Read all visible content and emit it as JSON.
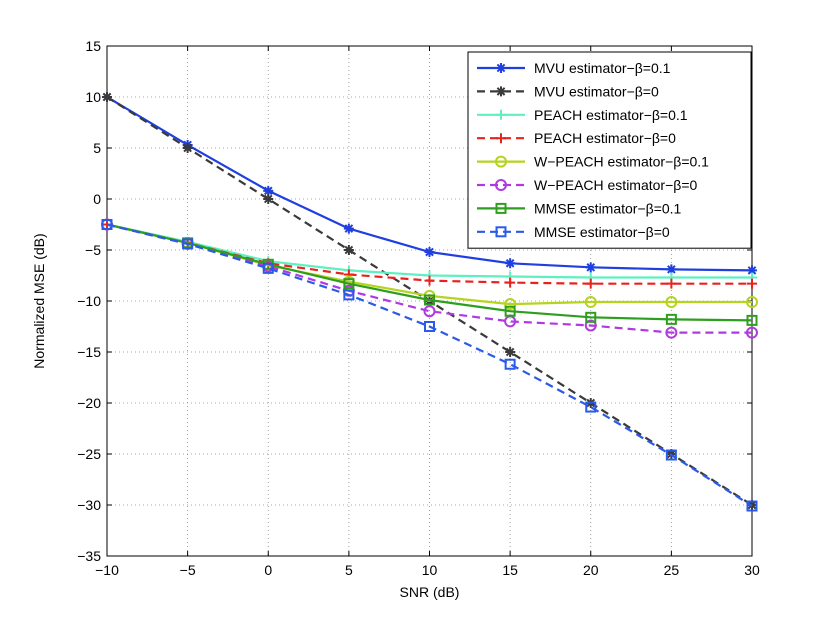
{
  "chart_data": {
    "type": "line",
    "title": "",
    "xlabel": "SNR (dB)",
    "ylabel": "Normalized MSE (dB)",
    "xlim": [
      -10,
      30
    ],
    "ylim": [
      -35,
      15
    ],
    "xticks": [
      -10,
      -5,
      0,
      5,
      10,
      15,
      20,
      25,
      30
    ],
    "yticks": [
      -35,
      -30,
      -25,
      -20,
      -15,
      -10,
      -5,
      0,
      5,
      10,
      15
    ],
    "xtick_labels": [
      "−10",
      "−5",
      "0",
      "5",
      "10",
      "15",
      "20",
      "25",
      "30"
    ],
    "ytick_labels": [
      "−35",
      "−30",
      "−25",
      "−20",
      "−15",
      "−10",
      "−5",
      "0",
      "5",
      "10",
      "15"
    ],
    "grid": true,
    "legend_position": "top-right",
    "x": [
      -10,
      -5,
      0,
      5,
      10,
      15,
      20,
      25,
      30
    ],
    "series": [
      {
        "name": "MVU estimator−β=0.1",
        "color": "#1f3fe0",
        "dash": "solid",
        "marker": "asterisk",
        "values": [
          10,
          5.3,
          0.8,
          -2.9,
          -5.2,
          -6.3,
          -6.7,
          -6.9,
          -7.0
        ]
      },
      {
        "name": "MVU estimator−β=0",
        "color": "#3a3a3a",
        "dash": "dashed",
        "marker": "asterisk",
        "values": [
          10,
          5,
          0,
          -5,
          -10,
          -15,
          -20,
          -25,
          -30
        ]
      },
      {
        "name": "PEACH estimator−β=0.1",
        "color": "#5ef0c0",
        "dash": "solid",
        "marker": "plus",
        "values": [
          -2.5,
          -4.2,
          -6.1,
          -7.0,
          -7.5,
          -7.6,
          -7.7,
          -7.7,
          -7.7
        ]
      },
      {
        "name": "PEACH estimator−β=0",
        "color": "#e8231e",
        "dash": "dashed",
        "marker": "plus",
        "values": [
          -2.5,
          -4.3,
          -6.3,
          -7.4,
          -8.0,
          -8.2,
          -8.3,
          -8.3,
          -8.3
        ]
      },
      {
        "name": "W−PEACH estimator−β=0.1",
        "color": "#b4d41e",
        "dash": "solid",
        "marker": "circle",
        "values": [
          -2.5,
          -4.3,
          -6.5,
          -8.1,
          -9.5,
          -10.3,
          -10.1,
          -10.1,
          -10.1
        ]
      },
      {
        "name": "W−PEACH estimator−β=0",
        "color": "#b03ae0",
        "dash": "dashed",
        "marker": "circle",
        "values": [
          -2.5,
          -4.4,
          -6.6,
          -9.0,
          -11.0,
          -12.0,
          -12.4,
          -13.1,
          -13.1
        ]
      },
      {
        "name": "MMSE estimator−β=0.1",
        "color": "#2e9e1e",
        "dash": "solid",
        "marker": "square",
        "values": [
          -2.5,
          -4.3,
          -6.4,
          -8.3,
          -9.9,
          -11.0,
          -11.6,
          -11.8,
          -11.9
        ]
      },
      {
        "name": "MMSE estimator−β=0",
        "color": "#2a5be8",
        "dash": "dashed",
        "marker": "square",
        "values": [
          -2.5,
          -4.4,
          -6.8,
          -9.4,
          -12.5,
          -16.2,
          -20.4,
          -25.1,
          -30.1
        ]
      }
    ]
  }
}
